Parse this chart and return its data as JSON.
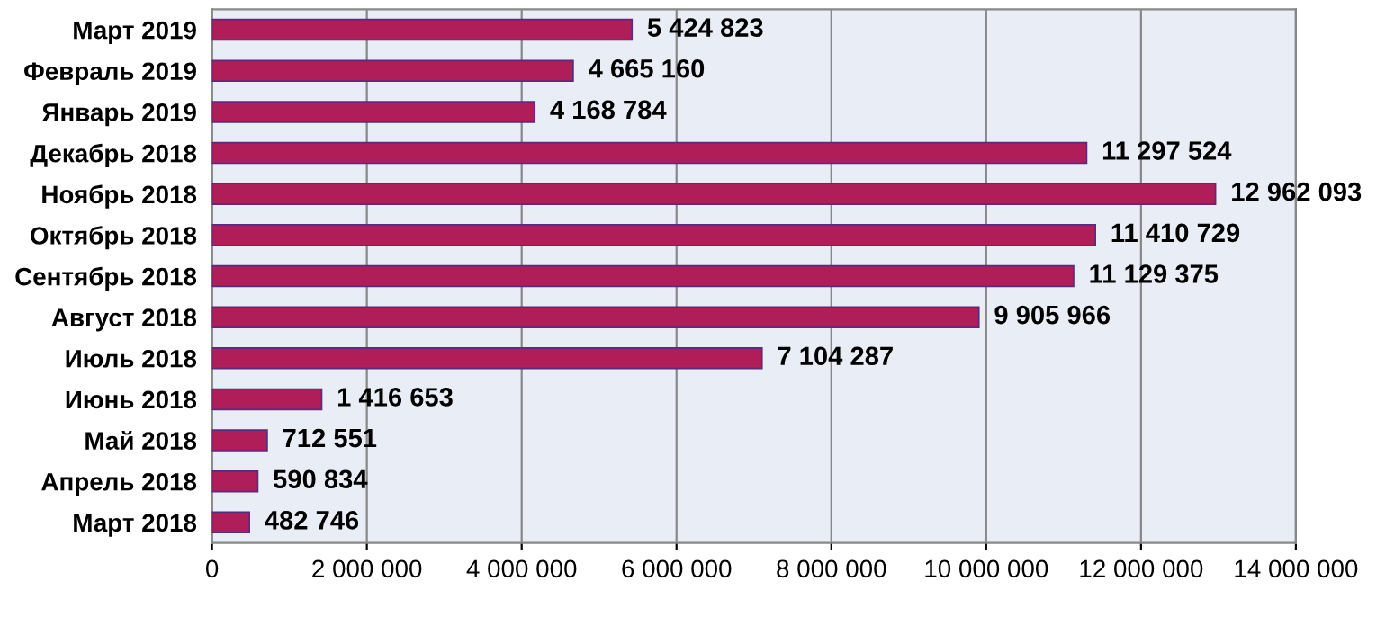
{
  "chart_data": {
    "type": "bar",
    "orientation": "horizontal",
    "categories": [
      "Март 2019",
      "Февраль 2019",
      "Январь 2019",
      "Декабрь 2018",
      "Ноябрь 2018",
      "Октябрь 2018",
      "Сентябрь 2018",
      "Август 2018",
      "Июль 2018",
      "Июнь 2018",
      "Май 2018",
      "Апрель 2018",
      "Март 2018"
    ],
    "values": [
      5424823,
      4665160,
      4168784,
      11297524,
      12962093,
      11410729,
      11129375,
      9905966,
      7104287,
      1416653,
      712551,
      590834,
      482746
    ],
    "value_labels": [
      "5 424 823",
      "4 665 160",
      "4 168 784",
      "11 297 524",
      "12 962 093",
      "11 410 729",
      "11 129 375",
      "9 905 966",
      "7 104 287",
      "1 416 653",
      "712 551",
      "590 834",
      "482 746"
    ],
    "color": "#b01e5a",
    "xlim": [
      0,
      14000000
    ],
    "xticks": [
      0,
      {
        "value": 2000000,
        "label": "2 000 000"
      },
      {
        "value": 4000000,
        "label": "4 000 000"
      },
      {
        "value": 6000000,
        "label": "6 000 000"
      },
      {
        "value": 8000000,
        "label": "8 000 000"
      },
      {
        "value": 10000000,
        "label": "10 000 000"
      },
      {
        "value": 12000000,
        "label": "12 000 000"
      },
      {
        "value": 14000000,
        "label": "14 000 000"
      }
    ],
    "grid": "x"
  }
}
